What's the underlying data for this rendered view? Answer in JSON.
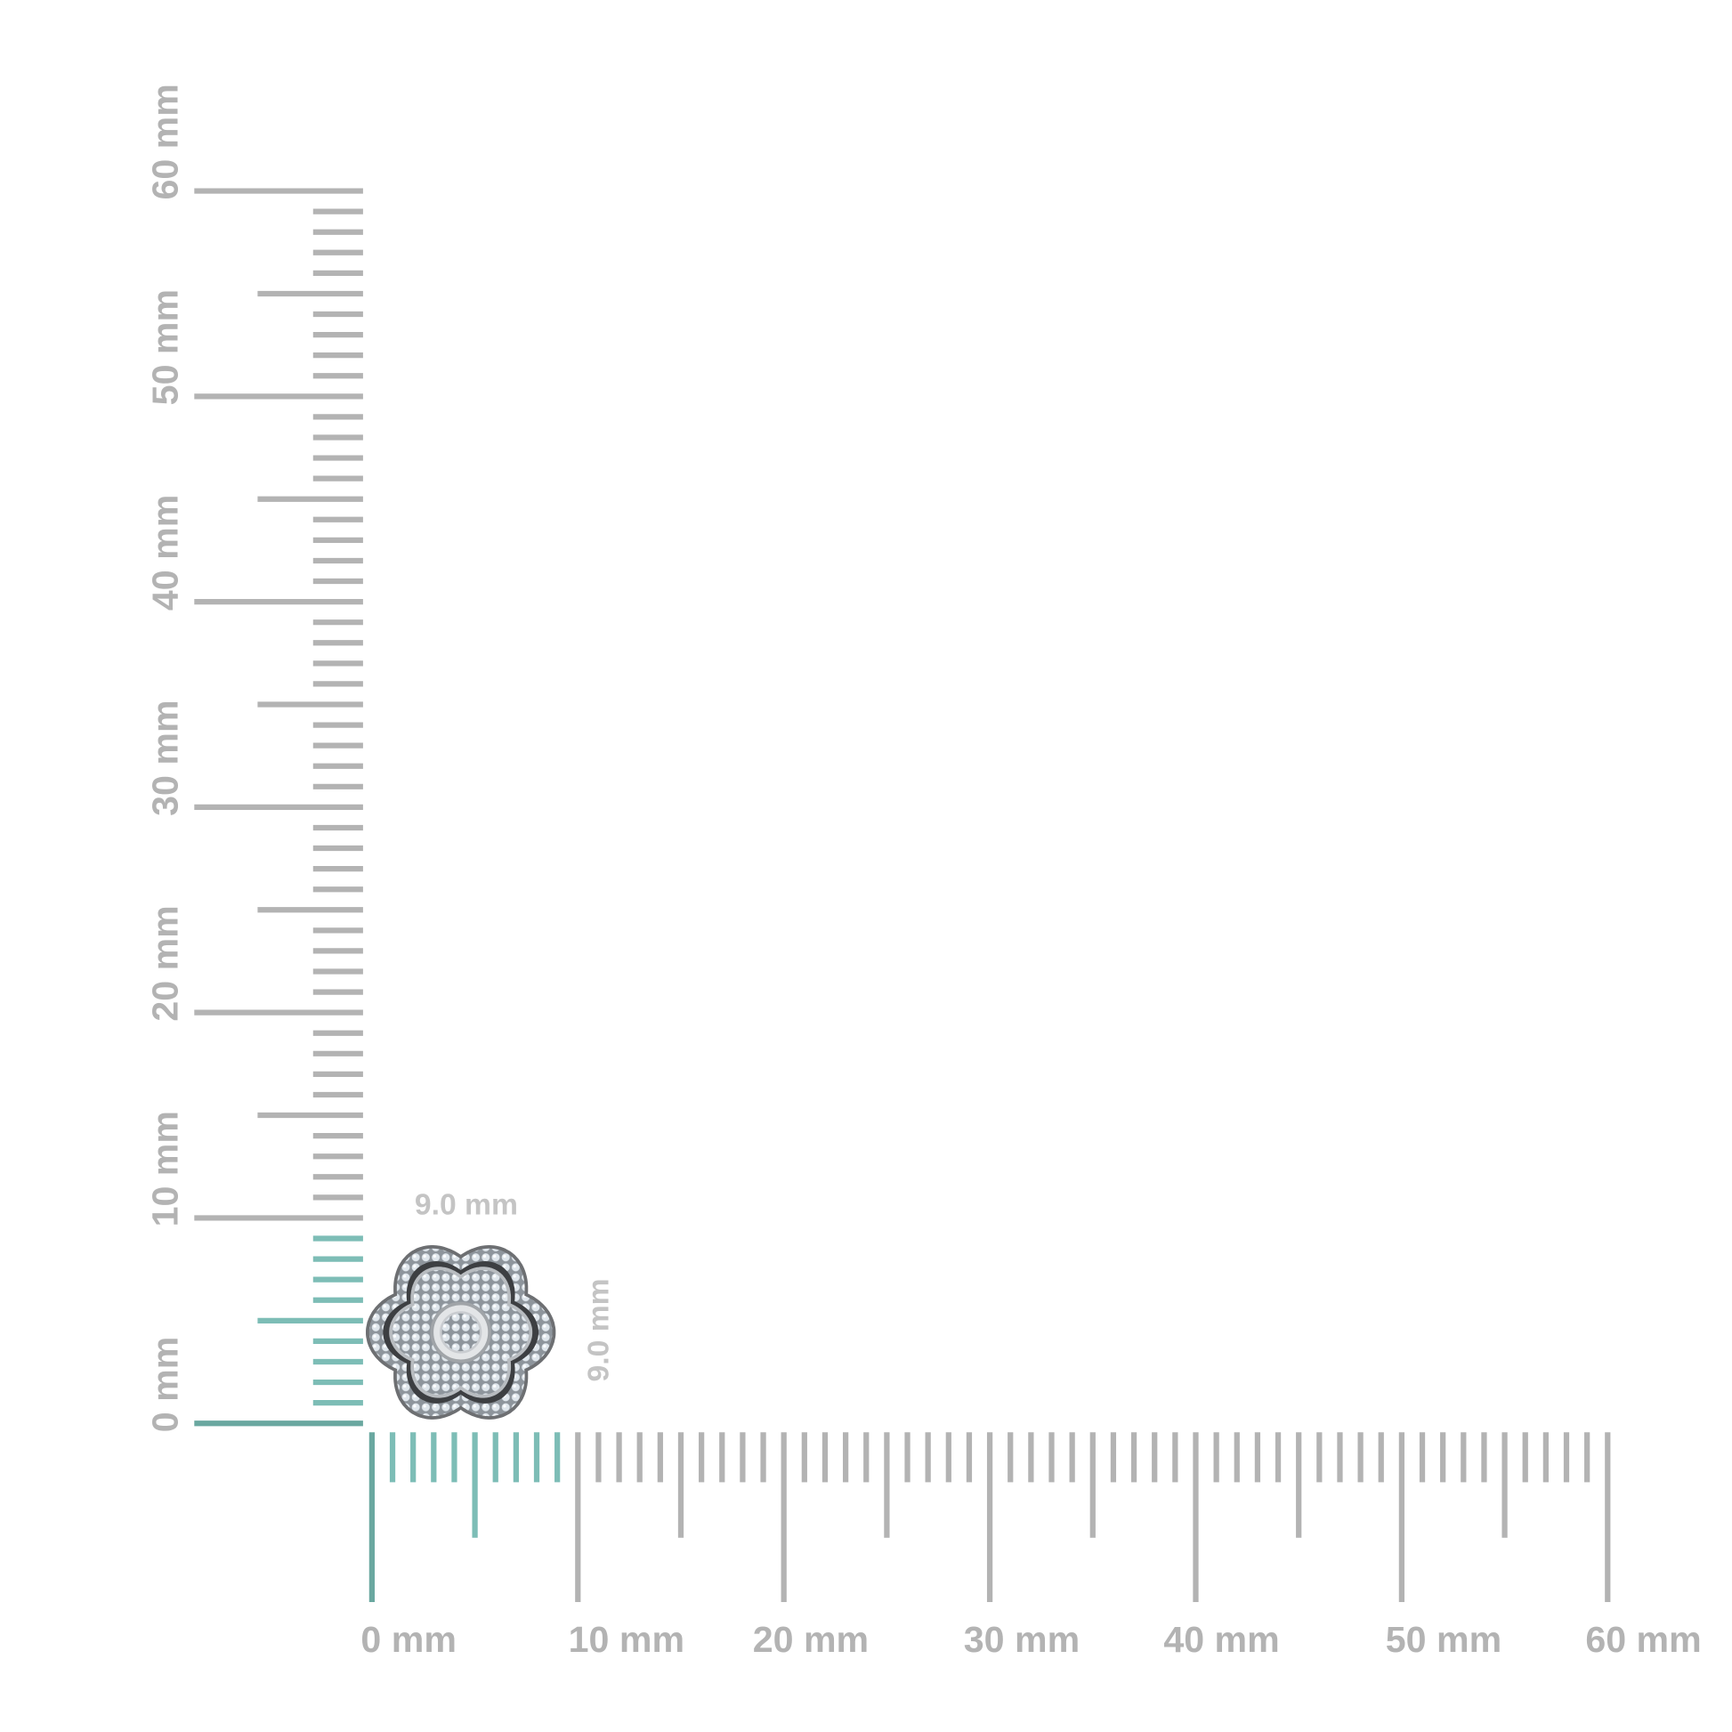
{
  "vertical_ruler": {
    "unit": "mm",
    "range": [
      0,
      60
    ],
    "labels": [
      "0 mm",
      "10 mm",
      "20 mm",
      "30 mm",
      "40 mm",
      "50 mm",
      "60 mm"
    ],
    "highlight_to": 9
  },
  "horizontal_ruler": {
    "unit": "mm",
    "range": [
      0,
      60
    ],
    "labels": [
      "0 mm",
      "10 mm",
      "20 mm",
      "30 mm",
      "40 mm",
      "50 mm",
      "60 mm"
    ],
    "highlight_to": 9
  },
  "product": {
    "width_label": "9.0 mm",
    "height_label": "9.0 mm",
    "width_mm": 9.0,
    "height_mm": 9.0
  },
  "colors": {
    "ruler": "#b3b3b3",
    "highlight": "#7dbdb6",
    "highlight_major": "#6aa8a0"
  }
}
